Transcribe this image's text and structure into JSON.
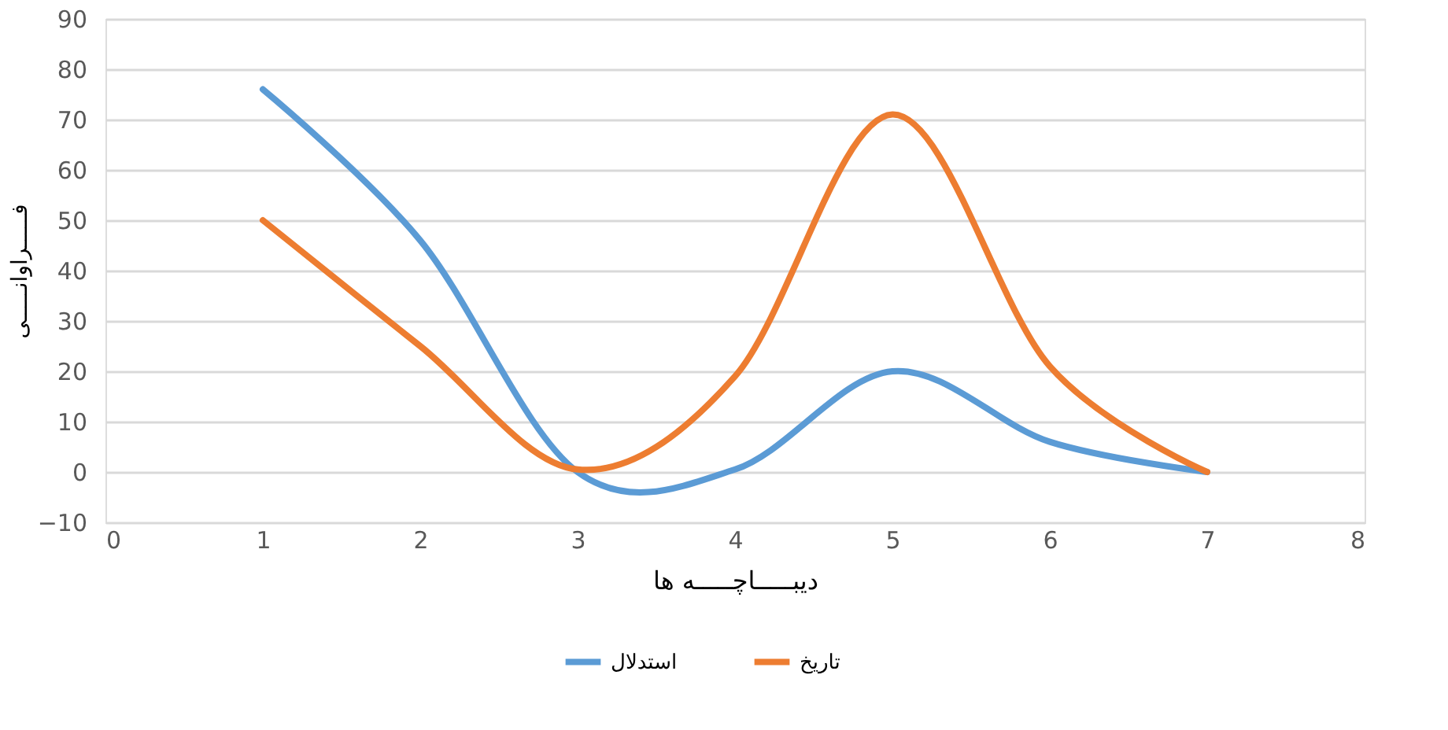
{
  "chart_data": {
    "type": "line",
    "xlabel": "دیبـــــاچـــــه ها",
    "ylabel": "فـــــراوانـــــی",
    "x": [
      1,
      2,
      3,
      4,
      5,
      6,
      7
    ],
    "series": [
      {
        "name": "استدلال",
        "color": "#5b9bd5",
        "values": [
          76,
          46,
          0,
          0.5,
          20,
          6,
          0
        ]
      },
      {
        "name": "تاریخ",
        "color": "#ed7d31",
        "values": [
          50,
          25,
          0.5,
          19,
          71,
          21,
          0
        ]
      }
    ],
    "xlim": [
      0,
      8
    ],
    "xticks": [
      0,
      1,
      2,
      3,
      4,
      5,
      6,
      7,
      8
    ],
    "ylim": [
      -10,
      90
    ],
    "yticks": [
      -10,
      0,
      10,
      20,
      30,
      40,
      50,
      60,
      70,
      80,
      90
    ],
    "grid": "y",
    "legend": "bottom",
    "marker": "none",
    "line_style": "solid"
  }
}
